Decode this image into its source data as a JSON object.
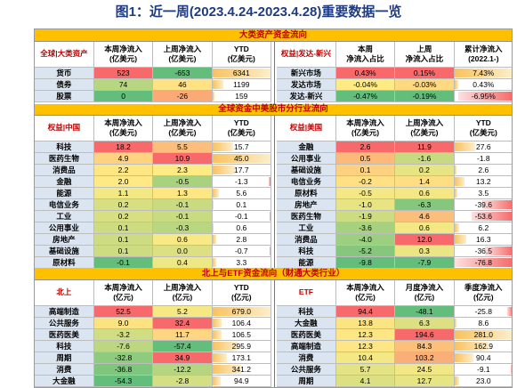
{
  "title": "图1：近一周(2023.4.24-2023.4.28)重要数据一览",
  "colors": {
    "band": "#ffc000",
    "band_text": "#c00000",
    "label_bg": "#dbe5f1",
    "title": "#1f3b82"
  },
  "sec1": {
    "band": "大类资产资金流向",
    "left": {
      "headers": [
        "全球|大类资产",
        "本周净流入\n(亿美元)",
        "上周净流入\n(亿美元)",
        "YTD\n(亿美元)"
      ],
      "rows": [
        {
          "label": "货币",
          "c1": "523",
          "c2": "-653",
          "ytd": "6341",
          "c1bg": "#f8696b",
          "c2bg": "#63be7b",
          "ytdfill": 1.0
        },
        {
          "label": "债券",
          "c1": "74",
          "c2": "46",
          "ytd": "1199",
          "c1bg": "#b6d680",
          "c2bg": "#ffe284",
          "ytdfill": 0.19
        },
        {
          "label": "股票",
          "c1": "0",
          "c2": "-26",
          "ytd": "159",
          "c1bg": "#63be7b",
          "c2bg": "#fbaa77",
          "ytdfill": 0.03
        }
      ]
    },
    "right": {
      "headers": [
        "权益|发达-新兴",
        "本周\n净流入占比",
        "上周\n净流入占比",
        "累计净流入\n(2022.1-)"
      ],
      "rows": [
        {
          "label": "新兴市场",
          "c1": "0.43%",
          "c2": "0.15%",
          "ytd": "7.43%",
          "c1bg": "#f8696b",
          "c2bg": "#f8696b",
          "ytdfill": 1.0
        },
        {
          "label": "发达市场",
          "c1": "-0.04%",
          "c2": "-0.03%",
          "ytd": "0.43%",
          "c1bg": "#ffeb84",
          "c2bg": "#ffd980",
          "ytdfill": 0.06
        },
        {
          "label": "发达-新兴",
          "c1": "-0.47%",
          "c2": "-0.19%",
          "ytd": "-6.95%",
          "c1bg": "#63be7b",
          "c2bg": "#63be7b",
          "ytdfill": -0.93
        }
      ]
    }
  },
  "sec2": {
    "band": "全球资金中美股市分行业流向",
    "left": {
      "headers": [
        "权益|中国",
        "本周净流入\n(亿美元)",
        "上周净流入\n(亿美元)",
        "YTD\n(亿美元)"
      ],
      "rows": [
        {
          "label": "科技",
          "c1": "18.2",
          "c2": "5.5",
          "ytd": "15.7",
          "c1bg": "#f8696b",
          "c2bg": "#fcbf7b",
          "ytdfill": 0.35
        },
        {
          "label": "医药生物",
          "c1": "4.9",
          "c2": "10.9",
          "ytd": "45.0",
          "c1bg": "#fed280",
          "c2bg": "#f8696b",
          "ytdfill": 1.0
        },
        {
          "label": "消费品",
          "c1": "2.2",
          "c2": "2.3",
          "ytd": "17.7",
          "c1bg": "#fee783",
          "c2bg": "#ffeb84",
          "ytdfill": 0.39
        },
        {
          "label": "金融",
          "c1": "2.0",
          "c2": "-0.5",
          "ytd": "-1.3",
          "c1bg": "#ffe984",
          "c2bg": "#a9d27f",
          "ytdfill": -0.03
        },
        {
          "label": "能源",
          "c1": "1.1",
          "c2": "1.3",
          "ytd": "5.6",
          "c1bg": "#f2e884",
          "c2bg": "#fee683",
          "ytdfill": 0.12
        },
        {
          "label": "电信业务",
          "c1": "0.2",
          "c2": "-0.1",
          "ytd": "0.1",
          "c1bg": "#d7df82",
          "c2bg": "#c9db81",
          "ytdfill": 0.01
        },
        {
          "label": "工业",
          "c1": "0.2",
          "c2": "-0.1",
          "ytd": "-0.1",
          "c1bg": "#d7df82",
          "c2bg": "#c9db81",
          "ytdfill": -0.01
        },
        {
          "label": "公用事业",
          "c1": "0.1",
          "c2": "-0.3",
          "ytd": "0.6",
          "c1bg": "#cddc81",
          "c2bg": "#b9d680",
          "ytdfill": 0.02
        },
        {
          "label": "房地产",
          "c1": "0.1",
          "c2": "0.6",
          "ytd": "2.8",
          "c1bg": "#cddc81",
          "c2bg": "#f7e984",
          "ytdfill": 0.06
        },
        {
          "label": "基础设施",
          "c1": "0.1",
          "c2": "0.0",
          "ytd": "-0.7",
          "c1bg": "#cddc81",
          "c2bg": "#dde082",
          "ytdfill": -0.02
        },
        {
          "label": "原材料",
          "c1": "-0.1",
          "c2": "0.4",
          "ytd": "3.3",
          "c1bg": "#63be7b",
          "c2bg": "#ede784",
          "ytdfill": 0.07
        }
      ]
    },
    "right": {
      "headers": [
        "权益|美国",
        "本周净流入\n(亿美元)",
        "上周净流入\n(亿美元)",
        "YTD\n(亿美元)"
      ],
      "rows": [
        {
          "label": "金融",
          "c1": "2.6",
          "c2": "11.9",
          "ytd": "27.6",
          "c1bg": "#f8696b",
          "c2bg": "#f8696b",
          "ytdfill": 0.36
        },
        {
          "label": "公用事业",
          "c1": "0.5",
          "c2": "-1.6",
          "ytd": "-1.8",
          "c1bg": "#fcba7a",
          "c2bg": "#c7da81",
          "ytdfill": -0.02
        },
        {
          "label": "基础设施",
          "c1": "0.1",
          "c2": "0.2",
          "ytd": "2.6",
          "c1bg": "#fdd17f",
          "c2bg": "#e6e483",
          "ytdfill": 0.03
        },
        {
          "label": "电信业务",
          "c1": "-0.2",
          "c2": "1.4",
          "ytd": "13.2",
          "c1bg": "#ffe183",
          "c2bg": "#fede82",
          "ytdfill": 0.17
        },
        {
          "label": "原材料",
          "c1": "-0.5",
          "c2": "0.6",
          "ytd": "3.5",
          "c1bg": "#f3e884",
          "c2bg": "#f3e884",
          "ytdfill": 0.05
        },
        {
          "label": "房地产",
          "c1": "-1.0",
          "c2": "-6.3",
          "ytd": "-39.6",
          "c1bg": "#e6e483",
          "c2bg": "#85c77d",
          "ytdfill": -0.52
        },
        {
          "label": "医药生物",
          "c1": "-1.9",
          "c2": "4.6",
          "ytd": "-53.6",
          "c1bg": "#cddc81",
          "c2bg": "#fcbf7b",
          "ytdfill": -0.7
        },
        {
          "label": "工业",
          "c1": "-3.6",
          "c2": "0.6",
          "ytd": "6.2",
          "c1bg": "#a6d17f",
          "c2bg": "#f3e884",
          "ytdfill": 0.08
        },
        {
          "label": "消费品",
          "c1": "-4.0",
          "c2": "12.0",
          "ytd": "16.3",
          "c1bg": "#9ccf7f",
          "c2bg": "#f8696b",
          "ytdfill": 0.21
        },
        {
          "label": "科技",
          "c1": "-5.2",
          "c2": "0.3",
          "ytd": "-36.5",
          "c1bg": "#86c77d",
          "c2bg": "#ebe683",
          "ytdfill": -0.48
        },
        {
          "label": "能源",
          "c1": "-9.8",
          "c2": "-7.9",
          "ytd": "-76.8",
          "c1bg": "#63be7b",
          "c2bg": "#63be7b",
          "ytdfill": -1.0
        }
      ]
    }
  },
  "sec3": {
    "band": "北上与ETF资金流向（财通大类行业）",
    "left": {
      "headers": [
        "北上",
        "本周净流入\n(亿元)",
        "上周净流入\n(亿元)",
        "YTD\n(亿元)"
      ],
      "rows": [
        {
          "label": "高端制造",
          "c1": "52.5",
          "c2": "5.2",
          "ytd": "679.0",
          "c1bg": "#f8696b",
          "c2bg": "#f6e984",
          "ytdfill": 1.0
        },
        {
          "label": "公共服务",
          "c1": "9.0",
          "c2": "32.4",
          "ytd": "106.4",
          "c1bg": "#fde282",
          "c2bg": "#f8696b",
          "ytdfill": 0.16
        },
        {
          "label": "医药医美",
          "c1": "-3.2",
          "c2": "11.7",
          "ytd": "106.5",
          "c1bg": "#d1dd82",
          "c2bg": "#fed580",
          "ytdfill": 0.16
        },
        {
          "label": "科技",
          "c1": "-7.6",
          "c2": "-57.4",
          "ytd": "295.9",
          "c1bg": "#bdd780",
          "c2bg": "#63be7b",
          "ytdfill": 0.44
        },
        {
          "label": "周期",
          "c1": "-32.8",
          "c2": "34.9",
          "ytd": "173.1",
          "c1bg": "#8ecb7e",
          "c2bg": "#f8696b",
          "ytdfill": 0.25
        },
        {
          "label": "消费",
          "c1": "-36.8",
          "c2": "-12.2",
          "ytd": "341.2",
          "c1bg": "#7fc67d",
          "c2bg": "#b5d580",
          "ytdfill": 0.5
        },
        {
          "label": "大金融",
          "c1": "-54.3",
          "c2": "-2.8",
          "ytd": "94.9",
          "c1bg": "#63be7b",
          "c2bg": "#d4de82",
          "ytdfill": 0.14
        }
      ]
    },
    "right": {
      "headers": [
        "ETF",
        "本周净流入\n(亿元)",
        "月度净流入\n(亿元)",
        "季度净流入\n(亿元)"
      ],
      "rows": [
        {
          "label": "科技",
          "c1": "94.4",
          "c2": "-48.1",
          "ytd": "-25.8",
          "c1bg": "#f8696b",
          "c2bg": "#63be7b",
          "ytdfill": -0.09
        },
        {
          "label": "大金融",
          "c1": "13.8",
          "c2": "6.3",
          "ytd": "8.6",
          "c1bg": "#fde482",
          "c2bg": "#dde082",
          "ytdfill": 0.03
        },
        {
          "label": "医药医美",
          "c1": "12.3",
          "c2": "194.6",
          "ytd": "281.0",
          "c1bg": "#fde683",
          "c2bg": "#f8696b",
          "ytdfill": 1.0
        },
        {
          "label": "高端制造",
          "c1": "12.3",
          "c2": "84.3",
          "ytd": "162.9",
          "c1bg": "#fde683",
          "c2bg": "#fcc07b",
          "ytdfill": 0.58
        },
        {
          "label": "消费",
          "c1": "10.4",
          "c2": "103.2",
          "ytd": "90.4",
          "c1bg": "#f3e884",
          "c2bg": "#fbaf78",
          "ytdfill": 0.32
        },
        {
          "label": "公共服务",
          "c1": "5.7",
          "c2": "24.5",
          "ytd": "-9.1",
          "c1bg": "#e3e383",
          "c2bg": "#f1e784",
          "ytdfill": -0.03
        },
        {
          "label": "周期",
          "c1": "4.1",
          "c2": "12.7",
          "ytd": "23.0",
          "c1bg": "#dde082",
          "c2bg": "#e6e483",
          "ytdfill": 0.08
        }
      ]
    }
  }
}
